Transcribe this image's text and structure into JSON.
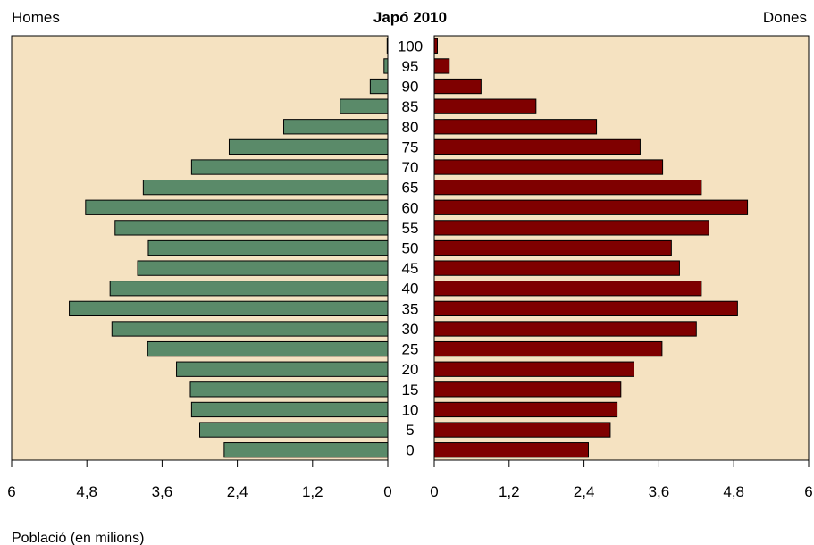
{
  "chart_data": {
    "type": "bar",
    "title": "Japó 2010",
    "left_label": "Homes",
    "right_label": "Dones",
    "xlabel": "Població (en milions)",
    "categories": [
      "0",
      "5",
      "10",
      "15",
      "20",
      "25",
      "30",
      "35",
      "40",
      "45",
      "50",
      "55",
      "60",
      "65",
      "70",
      "75",
      "80",
      "85",
      "90",
      "95",
      "100"
    ],
    "series": [
      {
        "name": "Homes",
        "color": "#5a8a69",
        "values": [
          2.61,
          3.0,
          3.13,
          3.15,
          3.37,
          3.83,
          4.4,
          5.08,
          4.43,
          3.99,
          3.82,
          4.35,
          4.82,
          3.9,
          3.13,
          2.53,
          1.66,
          0.76,
          0.28,
          0.06,
          0.01
        ]
      },
      {
        "name": "Dones",
        "color": "#7f0000",
        "values": [
          2.47,
          2.82,
          2.93,
          2.99,
          3.2,
          3.65,
          4.2,
          4.86,
          4.28,
          3.93,
          3.8,
          4.4,
          5.02,
          4.28,
          3.66,
          3.3,
          2.6,
          1.63,
          0.75,
          0.24,
          0.05
        ]
      }
    ],
    "xlim": [
      0,
      6
    ],
    "ticks": [
      "0",
      "1,2",
      "2,4",
      "3,6",
      "4,8",
      "6"
    ],
    "tick_values": [
      0,
      1.2,
      2.4,
      3.6,
      4.8,
      6
    ],
    "panel_color": "#f5e2c1",
    "grid": false
  }
}
